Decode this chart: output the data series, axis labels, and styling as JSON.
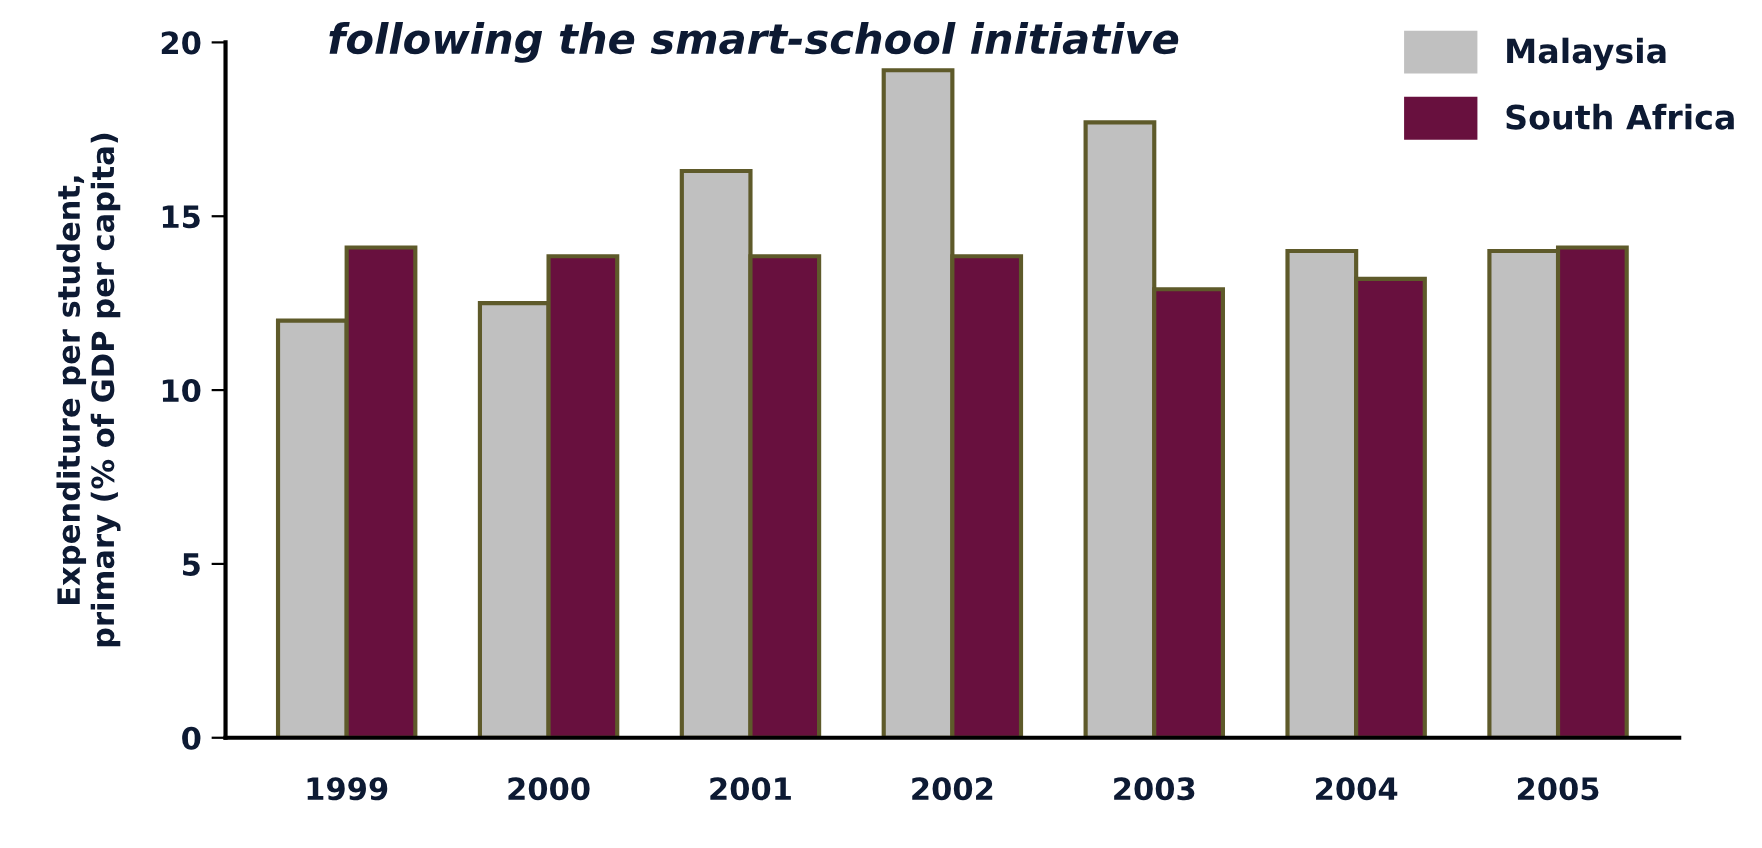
{
  "chart_data": {
    "type": "bar",
    "title": "following the smart-school initiative",
    "ylabel": "Expenditure per student,\nprimary (% of GDP per capita)",
    "categories": [
      "1999",
      "2000",
      "2001",
      "2002",
      "2003",
      "2004",
      "2005"
    ],
    "series": [
      {
        "name": "Malaysia",
        "color": "#c0c0c0",
        "values": [
          12.0,
          12.5,
          16.3,
          19.2,
          17.7,
          14.0,
          14.0
        ]
      },
      {
        "name": "South Africa",
        "color": "#68103e",
        "values": [
          14.1,
          13.85,
          13.85,
          13.85,
          12.9,
          13.2,
          14.1
        ]
      }
    ],
    "ylim": [
      0,
      20
    ],
    "yticks": [
      0,
      5,
      10,
      15,
      20
    ],
    "grid": false,
    "legend": "top right"
  }
}
